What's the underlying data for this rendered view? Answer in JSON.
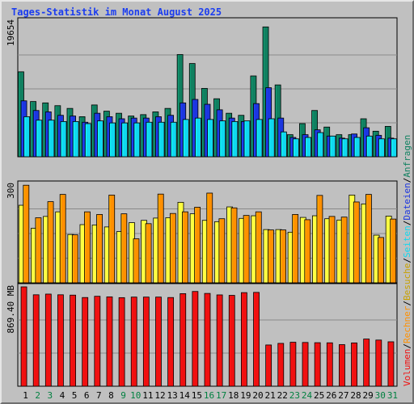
{
  "title": "Tages-Statistik im Monat August 2025",
  "chart_data": [
    {
      "type": "bar",
      "panel": "top",
      "ymax_label": "19654",
      "ymax": 19654,
      "categories": [
        "1",
        "2",
        "3",
        "4",
        "5",
        "6",
        "7",
        "8",
        "9",
        "10",
        "11",
        "12",
        "13",
        "14",
        "15",
        "16",
        "17",
        "18",
        "19",
        "20",
        "21",
        "22",
        "23",
        "24",
        "25",
        "26",
        "27",
        "28",
        "29",
        "30",
        "31"
      ],
      "series": [
        {
          "name": "Anfragen",
          "color": "#108060",
          "values": [
            12300,
            8000,
            7800,
            7400,
            7000,
            5800,
            7500,
            6600,
            6300,
            5900,
            6100,
            6500,
            7000,
            14800,
            13500,
            9900,
            8400,
            6300,
            6000,
            11700,
            18800,
            10400,
            3200,
            4800,
            6700,
            4300,
            3200,
            3200,
            5500,
            3700,
            4400
          ]
        },
        {
          "name": "Dateien",
          "color": "#1c36e0",
          "values": [
            8100,
            6700,
            6500,
            6000,
            5900,
            5000,
            6300,
            5800,
            5500,
            5600,
            5600,
            5800,
            6000,
            7800,
            8300,
            7600,
            6800,
            5600,
            5100,
            7700,
            10000,
            5600,
            2800,
            3200,
            3900,
            3000,
            2700,
            3300,
            4200,
            3100,
            2700
          ]
        },
        {
          "name": "Seiten",
          "color": "#10d8f0",
          "values": [
            5800,
            5300,
            5300,
            5100,
            5100,
            4800,
            5200,
            4900,
            4900,
            4900,
            5000,
            5000,
            5000,
            5400,
            5600,
            5400,
            5200,
            5100,
            5200,
            5400,
            5500,
            3600,
            2600,
            2800,
            3500,
            3000,
            2600,
            2800,
            3000,
            2600,
            2600
          ]
        }
      ]
    },
    {
      "type": "bar",
      "panel": "middle",
      "ymax_label": "300",
      "ymax": 300,
      "categories": [
        "1",
        "2",
        "3",
        "4",
        "5",
        "6",
        "7",
        "8",
        "9",
        "10",
        "11",
        "12",
        "13",
        "14",
        "15",
        "16",
        "17",
        "18",
        "19",
        "20",
        "21",
        "22",
        "23",
        "24",
        "25",
        "26",
        "27",
        "28",
        "29",
        "30",
        "31"
      ],
      "series": [
        {
          "name": "Besuche",
          "color": "#ffff40",
          "values": [
            236,
            166,
            202,
            216,
            147,
            177,
            176,
            170,
            156,
            183,
            190,
            197,
            198,
            245,
            210,
            190,
            186,
            231,
            196,
            204,
            162,
            162,
            154,
            199,
            204,
            195,
            191,
            267,
            240,
            145,
            203
          ]
        },
        {
          "name": "Rechner",
          "color": "#ff9000",
          "values": [
            297,
            198,
            247,
            269,
            146,
            216,
            208,
            267,
            210,
            134,
            180,
            270,
            211,
            216,
            230,
            273,
            195,
            228,
            205,
            216,
            161,
            161,
            208,
            192,
            266,
            202,
            200,
            246,
            269,
            138,
            194
          ]
        }
      ]
    },
    {
      "type": "bar",
      "panel": "bottom",
      "ymax_label": "869.40 MB",
      "ymax": 869.4,
      "categories": [
        "1",
        "2",
        "3",
        "4",
        "5",
        "6",
        "7",
        "8",
        "9",
        "10",
        "11",
        "12",
        "13",
        "14",
        "15",
        "16",
        "17",
        "18",
        "19",
        "20",
        "21",
        "22",
        "23",
        "24",
        "25",
        "26",
        "27",
        "28",
        "29",
        "30",
        "31"
      ],
      "series": [
        {
          "name": "Volumen",
          "color": "#f01010",
          "values": [
            869.4,
            800,
            806,
            800,
            797,
            776,
            787,
            782,
            775,
            780,
            780,
            780,
            776,
            810,
            829,
            812,
            799,
            795,
            819,
            821,
            361,
            375,
            385,
            383,
            381,
            380,
            364,
            379,
            413,
            404,
            389
          ]
        }
      ]
    }
  ],
  "legend_left_to_right": [
    "Volumen",
    "Rechner",
    "Besuche",
    "Seiten",
    "Dateien",
    "Anfragen"
  ],
  "legend_text": {
    "Volumen": "Volumen",
    "Rechner": "Rechner",
    "Besuche": "Besuche",
    "Seiten": "Seiten",
    "Dateien": "Dateien",
    "Anfragen": "Anfragen"
  },
  "legend_separator": "/",
  "weekend_days": [
    "2",
    "3",
    "9",
    "10",
    "16",
    "17",
    "23",
    "24",
    "30",
    "31"
  ],
  "colors": {
    "background": "#c0c0c0",
    "weekday_label": "#000000",
    "weekend_label": "#008040",
    "title": "#1b3df0",
    "gridline": "#8a8a8a"
  }
}
